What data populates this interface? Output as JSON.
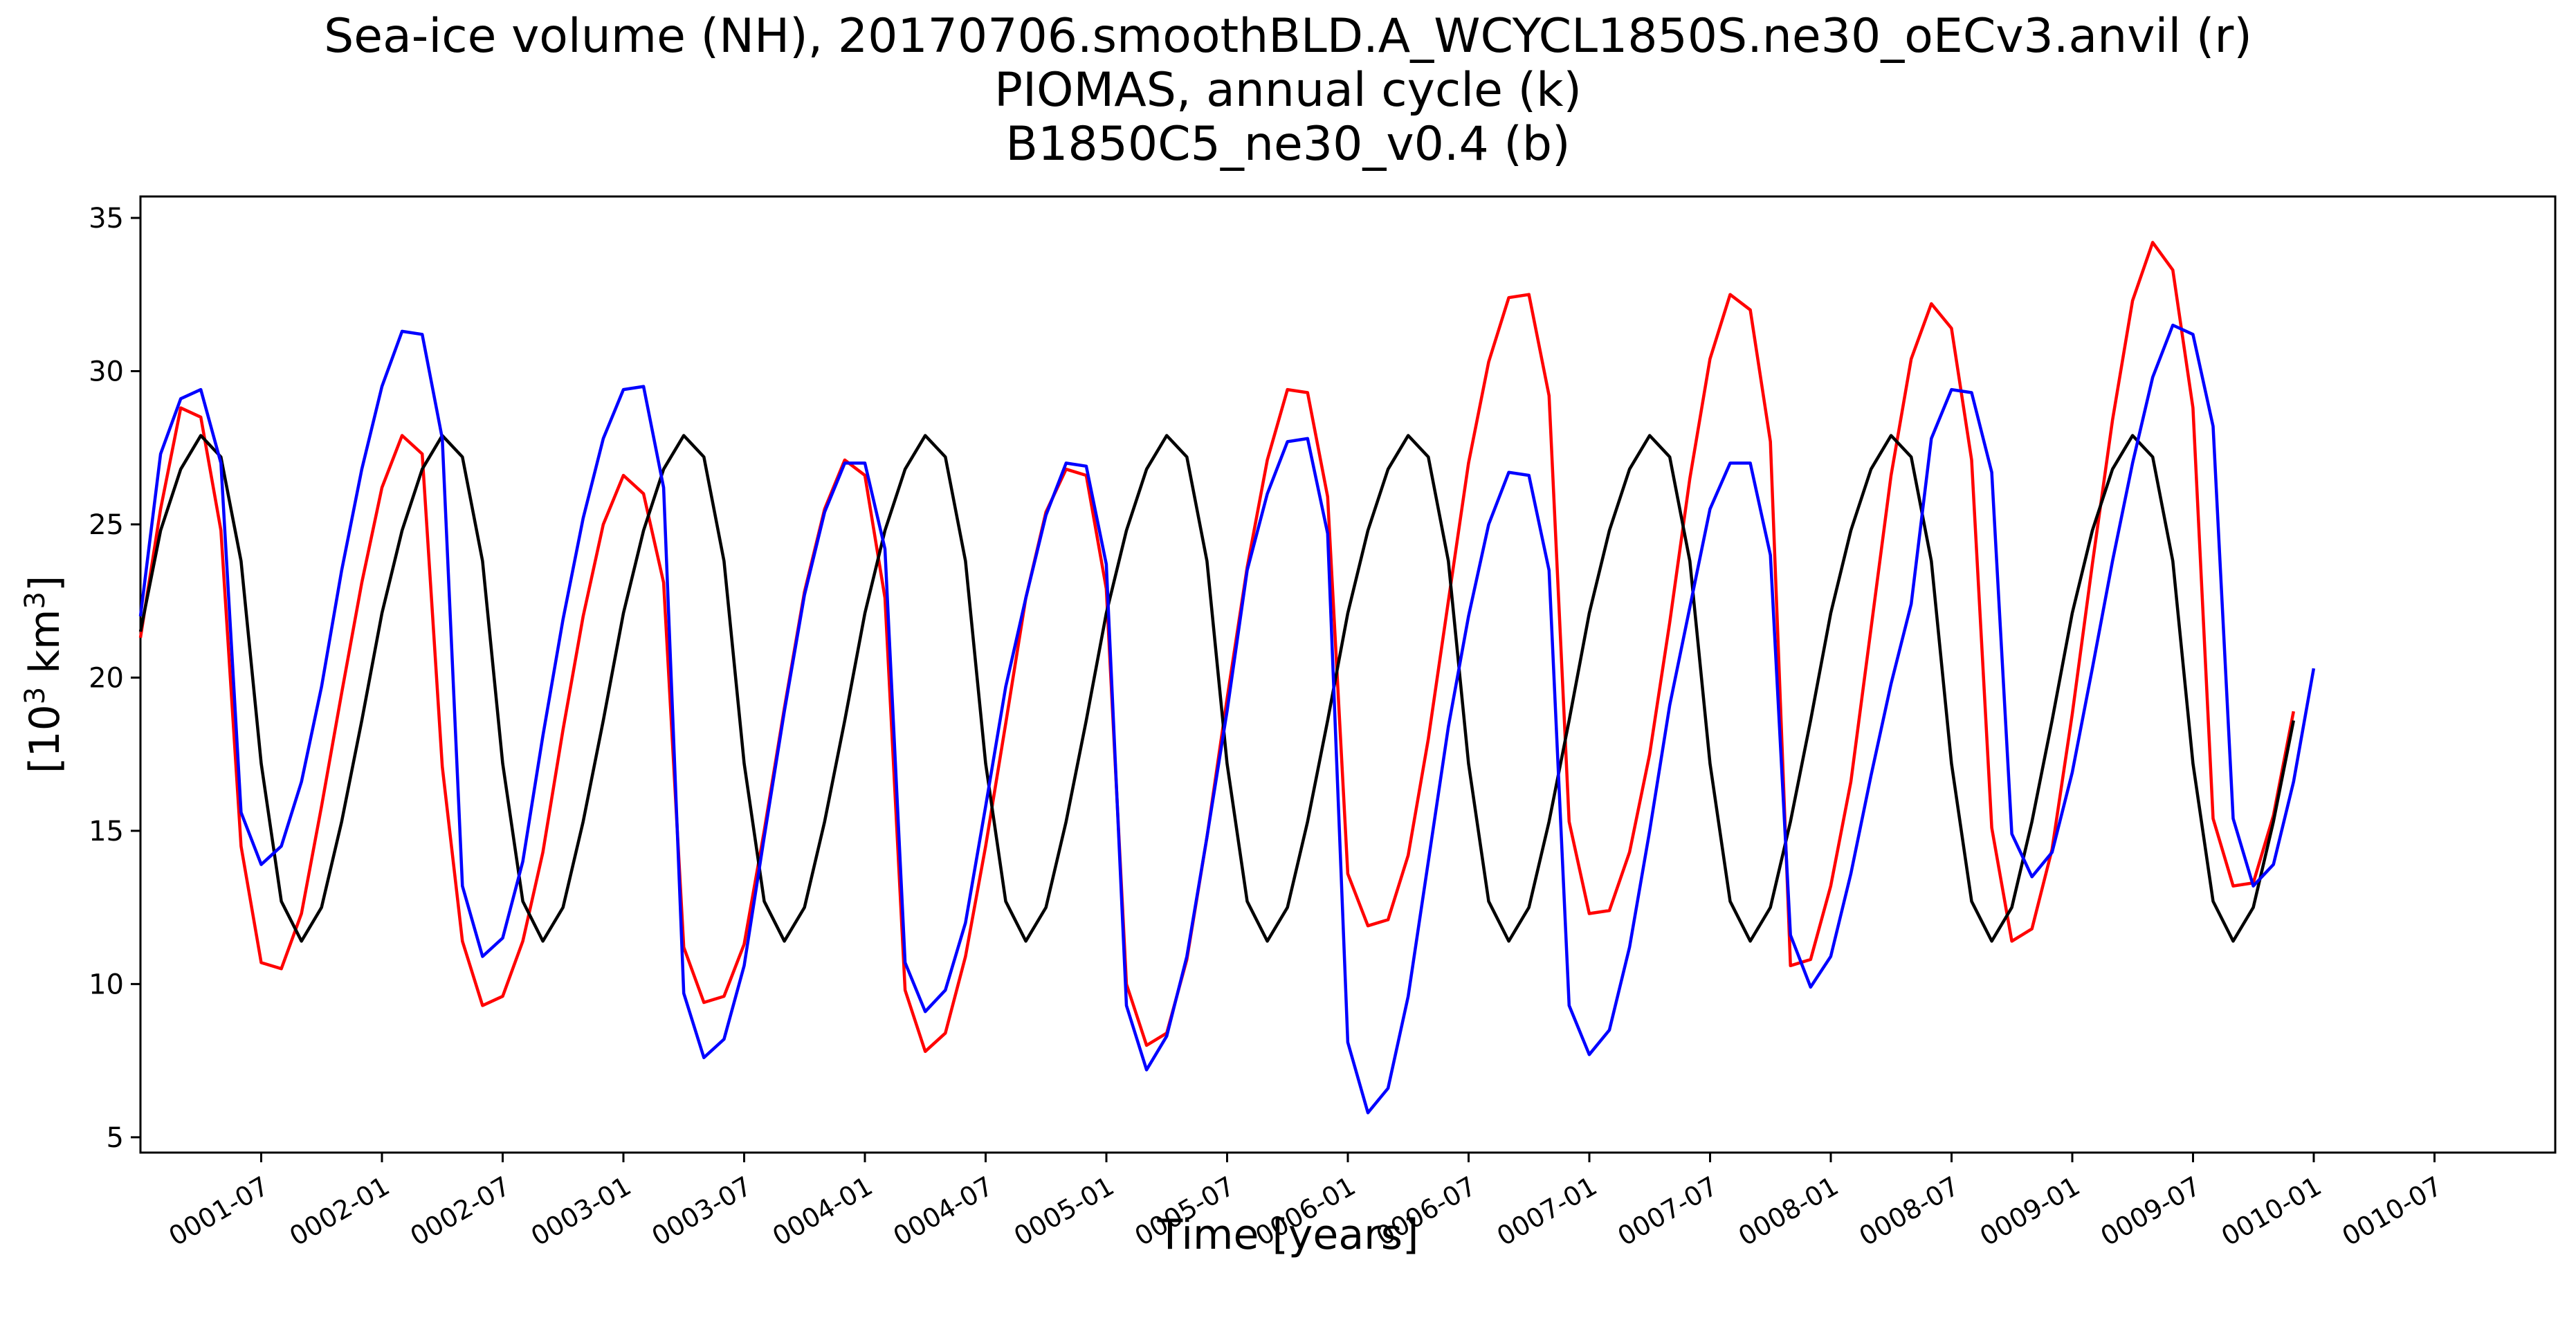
{
  "chart_data": {
    "type": "line",
    "title_lines": [
      "Sea-ice volume (NH), 20170706.smoothBLD.A_WCYCL1850S.ne30_oECv3.anvil (r)",
      "PIOMAS, annual cycle (k)",
      "B1850C5_ne30_v0.4 (b)"
    ],
    "xlabel": "Time [years]",
    "ylabel_base": "[10",
    "ylabel_sup1": "3",
    "ylabel_mid": " km",
    "ylabel_sup2": "3",
    "ylabel_end": "]",
    "xlim": [
      0.0,
      10.0
    ],
    "ylim": [
      4.5,
      35.7
    ],
    "yticks": [
      5,
      10,
      15,
      20,
      25,
      30,
      35
    ],
    "xticks": [
      {
        "label": "0001-07",
        "t": 0.5
      },
      {
        "label": "0002-01",
        "t": 1.0
      },
      {
        "label": "0002-07",
        "t": 1.5
      },
      {
        "label": "0003-01",
        "t": 2.0
      },
      {
        "label": "0003-07",
        "t": 2.5
      },
      {
        "label": "0004-01",
        "t": 3.0
      },
      {
        "label": "0004-07",
        "t": 3.5
      },
      {
        "label": "0005-01",
        "t": 4.0
      },
      {
        "label": "0005-07",
        "t": 4.5
      },
      {
        "label": "0006-01",
        "t": 5.0
      },
      {
        "label": "0006-07",
        "t": 5.5
      },
      {
        "label": "0007-01",
        "t": 6.0
      },
      {
        "label": "0007-07",
        "t": 6.5
      },
      {
        "label": "0008-01",
        "t": 7.0
      },
      {
        "label": "0008-07",
        "t": 7.5
      },
      {
        "label": "0009-01",
        "t": 8.0
      },
      {
        "label": "0009-07",
        "t": 8.5
      },
      {
        "label": "0010-01",
        "t": 9.0
      },
      {
        "label": "0010-07",
        "t": 9.5
      }
    ],
    "time_step_years": 0.08333,
    "series": [
      {
        "name": "20170706.smoothBLD.A_WCYCL1850S.ne30_oECv3.anvil",
        "key": "r",
        "color": "#ff0000",
        "values": [
          21.3,
          25.5,
          28.8,
          28.5,
          24.8,
          14.5,
          10.7,
          10.5,
          12.3,
          15.8,
          19.5,
          23.1,
          26.2,
          27.9,
          27.3,
          17.1,
          11.4,
          9.3,
          9.6,
          11.4,
          14.3,
          18.3,
          22.0,
          25.0,
          26.6,
          26.0,
          23.1,
          11.2,
          9.4,
          9.6,
          11.3,
          15.0,
          19.0,
          22.8,
          25.5,
          27.1,
          26.6,
          22.6,
          9.8,
          7.8,
          8.4,
          10.9,
          14.5,
          18.5,
          22.6,
          25.4,
          26.8,
          26.6,
          22.9,
          10.0,
          8.0,
          8.4,
          10.8,
          14.8,
          19.3,
          23.6,
          27.1,
          29.4,
          29.3,
          25.9,
          13.6,
          11.9,
          12.1,
          14.2,
          18.0,
          22.5,
          27.0,
          30.3,
          32.4,
          32.5,
          29.2,
          15.3,
          12.3,
          12.4,
          14.3,
          17.5,
          21.8,
          26.5,
          30.4,
          32.5,
          32.0,
          27.7,
          10.6,
          10.8,
          13.2,
          16.6,
          21.6,
          26.6,
          30.4,
          32.2,
          31.4,
          27.1,
          15.1,
          11.4,
          11.8,
          14.4,
          18.8,
          23.7,
          28.4,
          32.3,
          34.2,
          33.3,
          28.8,
          15.4,
          13.2,
          13.3,
          15.5,
          18.9
        ]
      },
      {
        "name": "PIOMAS, annual cycle",
        "key": "k",
        "color": "#000000",
        "values": [
          21.5,
          24.8,
          26.8,
          27.9,
          27.2,
          23.8,
          17.2,
          12.7,
          11.4,
          12.5,
          15.3,
          18.6,
          22.1,
          24.8,
          26.8,
          27.9,
          27.2,
          23.8,
          17.2,
          12.7,
          11.4,
          12.5,
          15.3,
          18.6,
          22.1,
          24.8,
          26.8,
          27.9,
          27.2,
          23.8,
          17.2,
          12.7,
          11.4,
          12.5,
          15.3,
          18.6,
          22.1,
          24.8,
          26.8,
          27.9,
          27.2,
          23.8,
          17.2,
          12.7,
          11.4,
          12.5,
          15.3,
          18.6,
          22.1,
          24.8,
          26.8,
          27.9,
          27.2,
          23.8,
          17.2,
          12.7,
          11.4,
          12.5,
          15.3,
          18.6,
          22.1,
          24.8,
          26.8,
          27.9,
          27.2,
          23.8,
          17.2,
          12.7,
          11.4,
          12.5,
          15.3,
          18.6,
          22.1,
          24.8,
          26.8,
          27.9,
          27.2,
          23.8,
          17.2,
          12.7,
          11.4,
          12.5,
          15.3,
          18.6,
          22.1,
          24.8,
          26.8,
          27.9,
          27.2,
          23.8,
          17.2,
          12.7,
          11.4,
          12.5,
          15.3,
          18.6,
          22.1,
          24.8,
          26.8,
          27.9,
          27.2,
          23.8,
          17.2,
          12.7,
          11.4,
          12.5,
          15.3,
          18.6
        ]
      },
      {
        "name": "B1850C5_ne30_v0.4",
        "key": "b",
        "color": "#0000ff",
        "values": [
          22.0,
          27.3,
          29.1,
          29.4,
          27.0,
          15.6,
          13.9,
          14.5,
          16.6,
          19.7,
          23.5,
          26.8,
          29.5,
          31.3,
          31.2,
          27.8,
          13.2,
          10.9,
          11.5,
          14.0,
          18.1,
          21.9,
          25.2,
          27.8,
          29.4,
          29.5,
          26.2,
          9.7,
          7.6,
          8.2,
          10.6,
          14.8,
          18.9,
          22.7,
          25.4,
          27.0,
          27.0,
          24.2,
          10.7,
          9.1,
          9.8,
          12.0,
          15.8,
          19.7,
          22.6,
          25.3,
          27.0,
          26.9,
          23.7,
          9.3,
          7.2,
          8.3,
          10.9,
          14.8,
          18.9,
          23.5,
          26.0,
          27.7,
          27.8,
          24.7,
          8.1,
          5.8,
          6.6,
          9.6,
          14.0,
          18.4,
          22.0,
          25.0,
          26.7,
          26.6,
          23.5,
          9.3,
          7.7,
          8.5,
          11.2,
          15.0,
          19.1,
          22.3,
          25.5,
          27.0,
          27.0,
          24.0,
          11.6,
          9.9,
          10.9,
          13.6,
          16.8,
          19.8,
          22.4,
          27.8,
          29.4,
          29.3,
          26.7,
          14.9,
          13.5,
          14.3,
          16.9,
          20.3,
          23.8,
          27.0,
          29.8,
          31.5,
          31.2,
          28.2,
          15.4,
          13.2,
          13.9,
          16.6,
          20.3
        ]
      }
    ]
  }
}
